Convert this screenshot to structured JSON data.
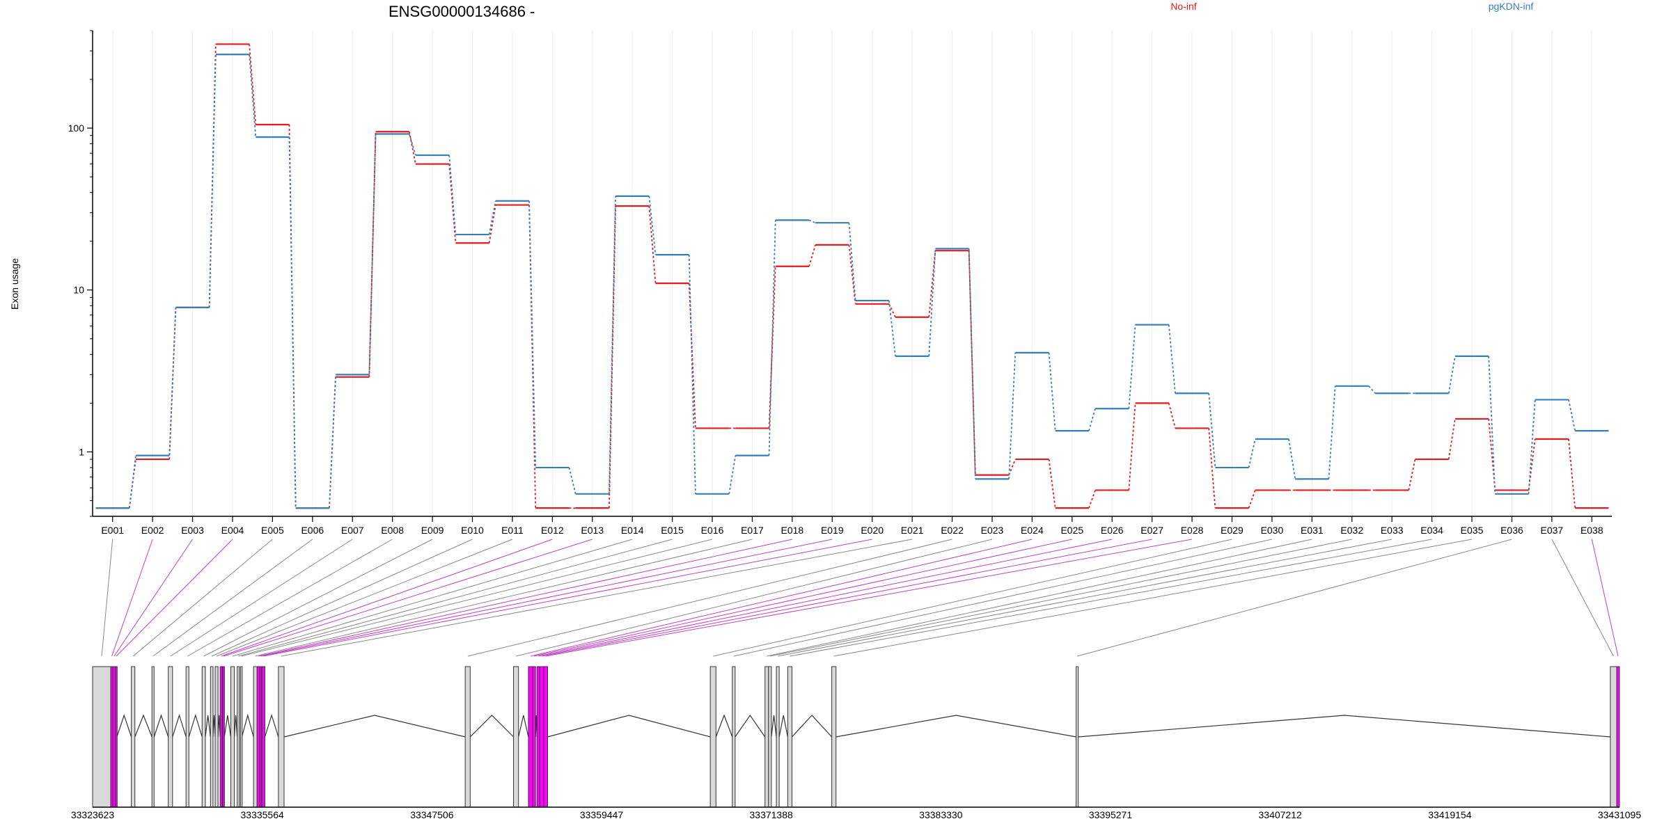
{
  "chart_data": {
    "type": "line",
    "title": "ENSG00000134686 -",
    "ylabel": "Exon usage",
    "yscale": "log",
    "ylim": [
      0.4,
      400
    ],
    "yticks": [
      "1",
      "10",
      "100"
    ],
    "grid": "vertical",
    "categories": [
      "E001",
      "E002",
      "E003",
      "E004",
      "E005",
      "E006",
      "E007",
      "E008",
      "E009",
      "E010",
      "E011",
      "E012",
      "E013",
      "E014",
      "E015",
      "E016",
      "E017",
      "E018",
      "E019",
      "E020",
      "E021",
      "E022",
      "E023",
      "E024",
      "E025",
      "E026",
      "E027",
      "E028",
      "E029",
      "E030",
      "E031",
      "E032",
      "E033",
      "E034",
      "E035",
      "E036",
      "E037",
      "E038"
    ],
    "series": [
      {
        "name": "No-inf",
        "color": "#e41a1c",
        "values": [
          0.45,
          0.9,
          7.8,
          330,
          105,
          0.45,
          2.9,
          95,
          60,
          19.5,
          33.5,
          0.45,
          0.45,
          33,
          11,
          1.4,
          1.4,
          14,
          19,
          8.2,
          6.8,
          17.5,
          0.72,
          0.9,
          0.45,
          0.58,
          2,
          1.4,
          0.45,
          0.58,
          0.58,
          0.58,
          0.58,
          0.9,
          1.6,
          0.58,
          1.2,
          0.45
        ]
      },
      {
        "name": "pgKDN-inf",
        "color": "#377eb8",
        "values": [
          0.45,
          0.95,
          7.8,
          285,
          88,
          0.45,
          3,
          92,
          68,
          22,
          35.5,
          0.8,
          0.55,
          38,
          16.5,
          0.55,
          0.95,
          27,
          26,
          8.6,
          3.9,
          18,
          0.68,
          4.1,
          1.35,
          1.85,
          6.1,
          2.3,
          0.8,
          1.2,
          0.68,
          2.55,
          2.3,
          2.3,
          3.9,
          0.55,
          2.1,
          1.35
        ]
      }
    ],
    "legend_placement": "top",
    "gene_model": {
      "coordinates": [
        "33323623",
        "33335564",
        "33347506",
        "33359447",
        "33371388",
        "33383330",
        "33395271",
        "33407212",
        "33419154",
        "33431095"
      ],
      "start": 33323623,
      "end": 33431095,
      "highlight_color": "#ff00ff",
      "highlighted_exons": [
        "E002",
        "E003",
        "E004",
        "E012",
        "E013",
        "E018",
        "E019",
        "E020",
        "E024",
        "E025",
        "E026",
        "E027",
        "E028",
        "E038"
      ],
      "exons": [
        {
          "id": "E001",
          "start": 33323623,
          "end": 33324900
        },
        {
          "id": "E002",
          "start": 33324900,
          "end": 33325050
        },
        {
          "id": "E003",
          "start": 33325050,
          "end": 33325230
        },
        {
          "id": "E004",
          "start": 33325230,
          "end": 33325330
        },
        {
          "id": "E005",
          "start": 33326350,
          "end": 33326600
        },
        {
          "id": "E006",
          "start": 33327800,
          "end": 33327950
        },
        {
          "id": "E007",
          "start": 33328950,
          "end": 33329250
        },
        {
          "id": "E008",
          "start": 33330200,
          "end": 33330400
        },
        {
          "id": "E009",
          "start": 33331330,
          "end": 33331560
        },
        {
          "id": "E010",
          "start": 33331920,
          "end": 33332100
        },
        {
          "id": "E011",
          "start": 33332250,
          "end": 33332450
        },
        {
          "id": "E012",
          "start": 33332600,
          "end": 33332750
        },
        {
          "id": "E013",
          "start": 33332780,
          "end": 33332900
        },
        {
          "id": "E014",
          "start": 33333350,
          "end": 33333600
        },
        {
          "id": "E015",
          "start": 33333800,
          "end": 33333950
        },
        {
          "id": "E016",
          "start": 33334030,
          "end": 33334130
        },
        {
          "id": "E017",
          "start": 33334950,
          "end": 33335200
        },
        {
          "id": "E018",
          "start": 33335200,
          "end": 33335400
        },
        {
          "id": "E019",
          "start": 33335400,
          "end": 33335500
        },
        {
          "id": "E020",
          "start": 33335550,
          "end": 33335750
        },
        {
          "id": "E021",
          "start": 33336700,
          "end": 33337100
        },
        {
          "id": "E022",
          "start": 33349850,
          "end": 33350200
        },
        {
          "id": "E023",
          "start": 33353250,
          "end": 33353600
        },
        {
          "id": "E024",
          "start": 33354300,
          "end": 33354600
        },
        {
          "id": "E025",
          "start": 33354600,
          "end": 33354800
        },
        {
          "id": "E026",
          "start": 33354900,
          "end": 33355100
        },
        {
          "id": "E027",
          "start": 33355100,
          "end": 33355380
        },
        {
          "id": "E028",
          "start": 33355380,
          "end": 33355650
        },
        {
          "id": "E029",
          "start": 33367100,
          "end": 33367500
        },
        {
          "id": "E030",
          "start": 33368650,
          "end": 33368850
        },
        {
          "id": "E031",
          "start": 33370950,
          "end": 33371200
        },
        {
          "id": "E032",
          "start": 33371200,
          "end": 33371400
        },
        {
          "id": "E033",
          "start": 33371750,
          "end": 33371950
        },
        {
          "id": "E034",
          "start": 33372550,
          "end": 33372850
        },
        {
          "id": "E035",
          "start": 33375650,
          "end": 33375950
        },
        {
          "id": "E036",
          "start": 33392850,
          "end": 33393000
        },
        {
          "id": "E037",
          "start": 33430450,
          "end": 33430900
        },
        {
          "id": "E038",
          "start": 33430900,
          "end": 33431095
        }
      ]
    }
  }
}
